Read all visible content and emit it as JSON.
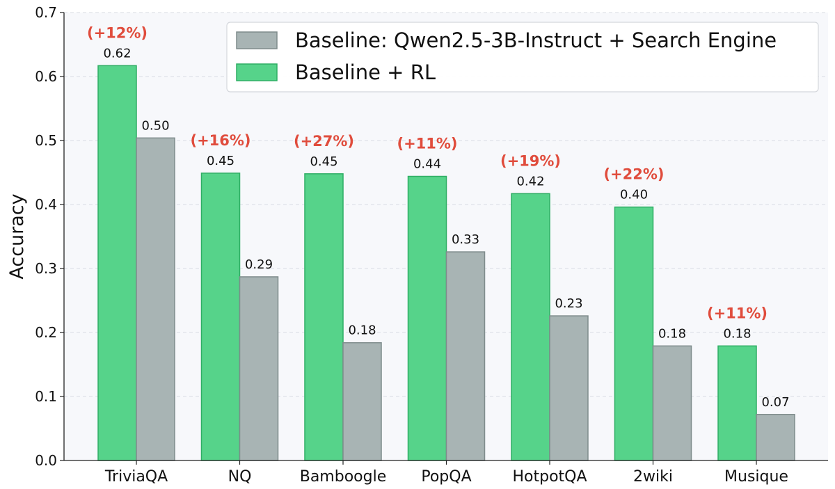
{
  "chart_data": {
    "type": "bar",
    "categories": [
      "TriviaQA",
      "NQ",
      "Bamboogle",
      "PopQA",
      "HotpotQA",
      "2wiki",
      "Musique"
    ],
    "series": [
      {
        "name": "Baseline + RL",
        "color": "#56d38a",
        "values": [
          0.617,
          0.449,
          0.448,
          0.444,
          0.417,
          0.396,
          0.179
        ],
        "labels": [
          "0.62",
          "0.45",
          "0.45",
          "0.44",
          "0.42",
          "0.40",
          "0.18"
        ],
        "gains": [
          "(+12%)",
          "(+16%)",
          "(+27%)",
          "(+11%)",
          "(+19%)",
          "(+22%)",
          "(+11%)"
        ]
      },
      {
        "name": "Baseline: Qwen2.5-3B-Instruct + Search Engine",
        "color": "#a8b4b4",
        "values": [
          0.504,
          0.287,
          0.184,
          0.326,
          0.226,
          0.179,
          0.072
        ],
        "labels": [
          "0.50",
          "0.29",
          "0.18",
          "0.33",
          "0.23",
          "0.18",
          "0.07"
        ]
      }
    ],
    "legend_order": [
      1,
      0
    ],
    "gain_color": "#e04c3c",
    "ylabel": "Accuracy",
    "ylim": [
      0,
      0.7
    ],
    "yticks": [
      "0.0",
      "0.1",
      "0.2",
      "0.3",
      "0.4",
      "0.5",
      "0.6",
      "0.7"
    ],
    "grid": "y-dashed",
    "legend_position": "top-right"
  }
}
